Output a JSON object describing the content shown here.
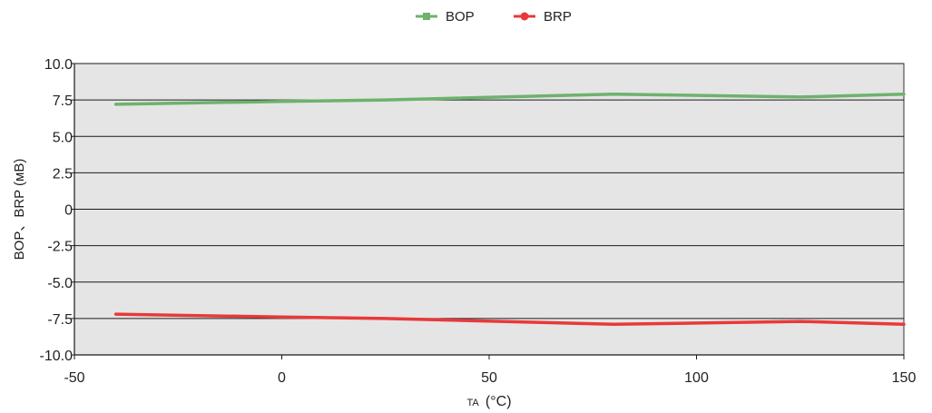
{
  "chart_data": {
    "type": "line",
    "xlabel": {
      "prefix": "TA",
      "unit": "(°C)"
    },
    "ylabel": "BOP、BRP (мВ)",
    "xlim": [
      -50,
      150
    ],
    "ylim": [
      -10,
      10
    ],
    "x_ticks": [
      -50,
      0,
      50,
      100,
      150
    ],
    "y_ticks": [
      10,
      7.5,
      5,
      2.5,
      0,
      -2.5,
      -5,
      -7.5,
      -10
    ],
    "x_tick_labels": [
      "-50",
      "0",
      "50",
      "100",
      "150"
    ],
    "y_tick_labels": [
      "10.0",
      "7.5",
      "5.0",
      "2.5",
      "0",
      "-2.5",
      "-5.0",
      "-7.5",
      "-10.0"
    ],
    "grid": "horizontal",
    "legend_position": "top-center",
    "plot_background": "#e5e5e5",
    "series": [
      {
        "name": "BOP",
        "color": "#6db26d",
        "points": [
          [
            -40,
            7.2
          ],
          [
            0,
            7.4
          ],
          [
            25,
            7.5
          ],
          [
            80,
            7.9
          ],
          [
            125,
            7.7
          ],
          [
            150,
            7.9
          ]
        ]
      },
      {
        "name": "BRP",
        "color": "#e8393a",
        "points": [
          [
            -40,
            -7.2
          ],
          [
            0,
            -7.4
          ],
          [
            25,
            -7.5
          ],
          [
            80,
            -7.9
          ],
          [
            125,
            -7.7
          ],
          [
            150,
            -7.9
          ]
        ]
      }
    ]
  }
}
